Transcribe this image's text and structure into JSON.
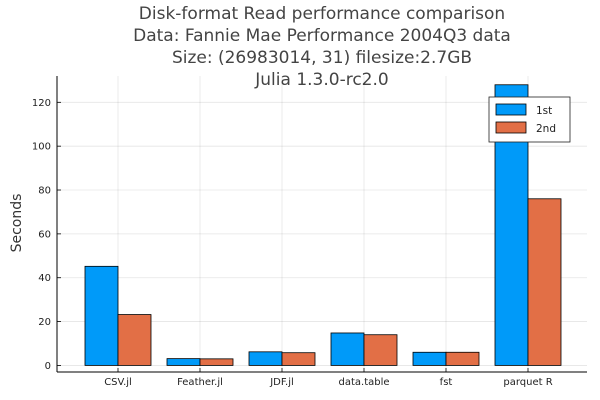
{
  "chart_data": {
    "type": "bar",
    "title_lines": [
      "Disk-format Read performance comparison",
      "Data: Fannie Mae Performance 2004Q3 data",
      "Size: (26983014, 31) filesize:2.7GB",
      "Julia 1.3.0-rc2.0"
    ],
    "xlabel": "",
    "ylabel": "Seconds",
    "categories": [
      "CSV.jl",
      "Feather.jl",
      "JDF.jl",
      "data.table",
      "fst",
      "parquet R"
    ],
    "series": [
      {
        "name": "1st",
        "color": "#009af9",
        "values": [
          45.2,
          3.1,
          6.2,
          14.8,
          6.0,
          128.0
        ]
      },
      {
        "name": "2nd",
        "color": "#e26f46",
        "values": [
          23.2,
          3.0,
          5.8,
          14.0,
          6.0,
          76.0
        ]
      }
    ],
    "ylim": [
      -3,
      132
    ],
    "yticks": [
      0,
      20,
      40,
      60,
      80,
      100,
      120
    ],
    "grid": true,
    "legend_position": "top-right"
  }
}
